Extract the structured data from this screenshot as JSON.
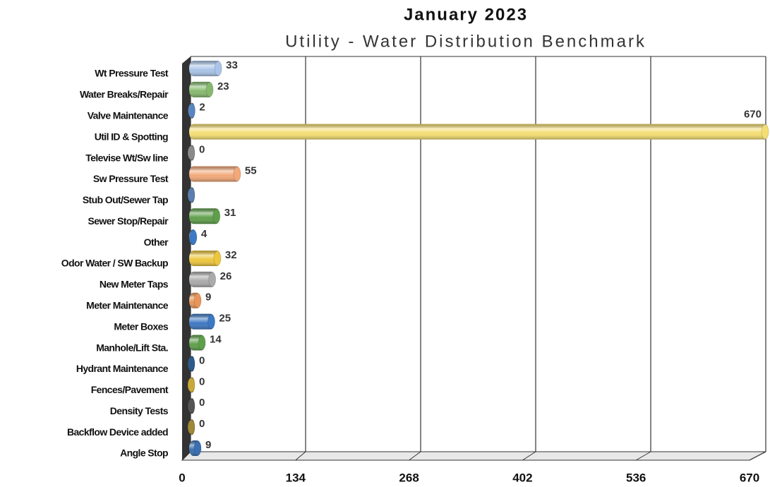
{
  "chart_data": {
    "type": "bar3d_horizontal",
    "title": "January 2023",
    "subtitle": "Utility - Water Distribution Benchmark",
    "categories": [
      "Wt Pressure Test",
      "Water Breaks/Repair",
      "Valve Maintenance",
      "Util ID & Spotting",
      "Televise Wt/Sw line",
      "Sw Pressure Test",
      "Stub Out/Sewer Tap",
      "Sewer Stop/Repair",
      "Other",
      "Odor Water / SW Backup",
      "New Meter Taps",
      "Meter Maintenance",
      "Meter Boxes",
      "Manhole/Lift Sta.",
      "Hydrant Maintenance",
      "Fences/Pavement",
      "Density Tests",
      "Backflow Device added",
      "Angle Stop"
    ],
    "values": [
      33,
      23,
      2,
      670,
      0,
      55,
      0,
      31,
      4,
      32,
      26,
      9,
      25,
      14,
      0,
      0,
      0,
      0,
      9
    ],
    "value_labels": [
      "33",
      "23",
      "2",
      "670",
      "0",
      "55",
      null,
      "31",
      "4",
      "32",
      "26",
      "9",
      "25",
      "14",
      "0",
      "0",
      "0",
      "0",
      "9"
    ],
    "colors": [
      "#a9c4e8",
      "#86b96e",
      "#5a86c0",
      "#f4dd72",
      "#8a8a8a",
      "#f2a878",
      "#5a7fae",
      "#5f9f4b",
      "#3d7ac4",
      "#ecc63c",
      "#ababab",
      "#e8955a",
      "#3d78c2",
      "#5f9f4b",
      "#2e5b8a",
      "#c9a83a",
      "#555555",
      "#a08838",
      "#3a6fb0"
    ],
    "xlim": [
      0,
      670
    ],
    "xticks": [
      0,
      134,
      268,
      402,
      536,
      670
    ],
    "grid": true
  }
}
